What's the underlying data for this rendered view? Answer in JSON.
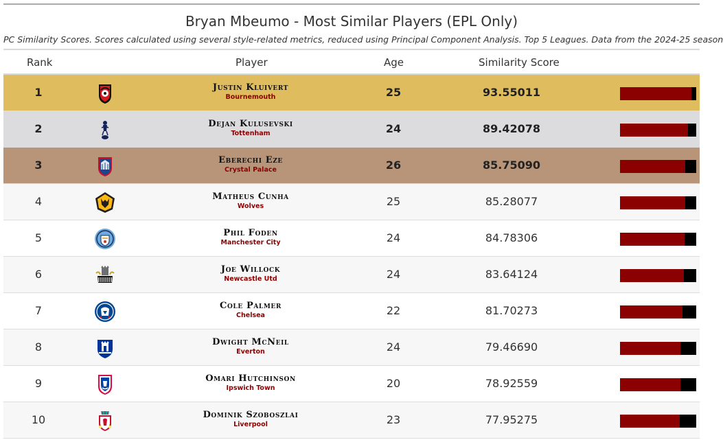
{
  "title": "Bryan Mbeumo - Most Similar Players (EPL Only)",
  "subtitle": "PC Similarity Scores. Scores calculated using several style-related metrics, reduced using Principal Component Analysis. Top 5 Leagues. Data from the 2024-25 season",
  "columns": {
    "rank": "Rank",
    "player": "Player",
    "age": "Age",
    "score": "Similarity Score"
  },
  "rows": [
    {
      "rank": "1",
      "name": "Justin Kluivert",
      "club": "Bournemouth",
      "age": "25",
      "score": "93.55011",
      "bar_fraction": 0.936,
      "logo": "bournemouth-crest-icon"
    },
    {
      "rank": "2",
      "name": "Dejan Kulusevski",
      "club": "Tottenham",
      "age": "24",
      "score": "89.42078",
      "bar_fraction": 0.894,
      "logo": "tottenham-crest-icon"
    },
    {
      "rank": "3",
      "name": "Eberechi Eze",
      "club": "Crystal Palace",
      "age": "26",
      "score": "85.75090",
      "bar_fraction": 0.858,
      "logo": "crystal-palace-crest-icon"
    },
    {
      "rank": "4",
      "name": "Matheus Cunha",
      "club": "Wolves",
      "age": "25",
      "score": "85.28077",
      "bar_fraction": 0.853,
      "logo": "wolves-crest-icon"
    },
    {
      "rank": "5",
      "name": "Phil Foden",
      "club": "Manchester City",
      "age": "24",
      "score": "84.78306",
      "bar_fraction": 0.848,
      "logo": "manchester-city-crest-icon"
    },
    {
      "rank": "6",
      "name": "Joe Willock",
      "club": "Newcastle Utd",
      "age": "24",
      "score": "83.64124",
      "bar_fraction": 0.836,
      "logo": "newcastle-crest-icon"
    },
    {
      "rank": "7",
      "name": "Cole Palmer",
      "club": "Chelsea",
      "age": "22",
      "score": "81.70273",
      "bar_fraction": 0.817,
      "logo": "chelsea-crest-icon"
    },
    {
      "rank": "8",
      "name": "Dwight McNeil",
      "club": "Everton",
      "age": "24",
      "score": "79.46690",
      "bar_fraction": 0.795,
      "logo": "everton-crest-icon"
    },
    {
      "rank": "9",
      "name": "Omari Hutchinson",
      "club": "Ipswich Town",
      "age": "20",
      "score": "78.92559",
      "bar_fraction": 0.789,
      "logo": "ipswich-crest-icon"
    },
    {
      "rank": "10",
      "name": "Dominik Szoboszlai",
      "club": "Liverpool",
      "age": "23",
      "score": "77.95275",
      "bar_fraction": 0.78,
      "logo": "liverpool-crest-icon"
    }
  ],
  "colors": {
    "gold_row": "#dfbd5f",
    "silver_row": "#dcdcde",
    "bronze_row": "#b89579",
    "bar_fill": "#8b0000",
    "bar_track": "#000000",
    "club_text": "#8b0000"
  }
}
